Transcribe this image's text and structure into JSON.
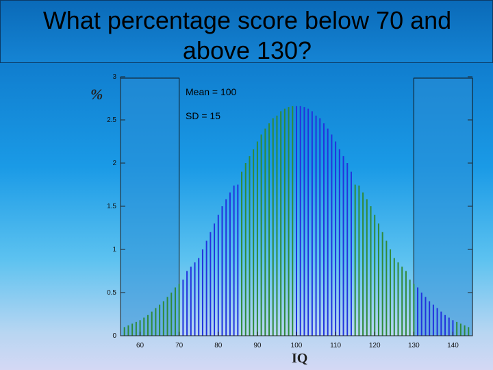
{
  "slide": {
    "title": "What percentage score below 70 and above 130?"
  },
  "chart_data": {
    "type": "bar",
    "xlabel": "IQ",
    "ylabel": "%",
    "xlim": [
      55,
      145
    ],
    "ylim": [
      0,
      3
    ],
    "xticks": [
      "60",
      "70",
      "80",
      "90",
      "100",
      "110",
      "120",
      "130",
      "140"
    ],
    "yticks": [
      "0",
      "0.5",
      "1",
      "1.5",
      "2",
      "2.5",
      "3"
    ],
    "annotations": [
      "Mean = 100",
      "SD = 15"
    ],
    "grid": false,
    "highlight_regions": [
      [
        55,
        70
      ],
      [
        130,
        145
      ]
    ],
    "x": [
      56,
      57,
      58,
      59,
      60,
      61,
      62,
      63,
      64,
      65,
      66,
      67,
      68,
      69,
      70,
      71,
      72,
      73,
      74,
      75,
      76,
      77,
      78,
      79,
      80,
      81,
      82,
      83,
      84,
      85,
      86,
      87,
      88,
      89,
      90,
      91,
      92,
      93,
      94,
      95,
      96,
      97,
      98,
      99,
      100,
      101,
      102,
      103,
      104,
      105,
      106,
      107,
      108,
      109,
      110,
      111,
      112,
      113,
      114,
      115,
      116,
      117,
      118,
      119,
      120,
      121,
      122,
      123,
      124,
      125,
      126,
      127,
      128,
      129,
      130,
      131,
      132,
      133,
      134,
      135,
      136,
      137,
      138,
      139,
      140,
      141,
      142,
      143,
      144
    ],
    "values": [
      0.1,
      0.12,
      0.14,
      0.16,
      0.18,
      0.21,
      0.24,
      0.28,
      0.32,
      0.36,
      0.4,
      0.45,
      0.5,
      0.56,
      0.6,
      0.65,
      0.75,
      0.8,
      0.85,
      0.9,
      1.0,
      1.1,
      1.2,
      1.3,
      1.4,
      1.5,
      1.58,
      1.66,
      1.74,
      1.75,
      1.9,
      2.0,
      2.08,
      2.16,
      2.25,
      2.33,
      2.4,
      2.46,
      2.52,
      2.55,
      2.6,
      2.63,
      2.65,
      2.66,
      2.66,
      2.66,
      2.65,
      2.63,
      2.6,
      2.55,
      2.52,
      2.46,
      2.4,
      2.33,
      2.25,
      2.16,
      2.08,
      2.0,
      1.9,
      1.75,
      1.74,
      1.66,
      1.58,
      1.5,
      1.4,
      1.3,
      1.2,
      1.1,
      1.0,
      0.9,
      0.85,
      0.8,
      0.75,
      0.65,
      0.6,
      0.56,
      0.5,
      0.45,
      0.4,
      0.36,
      0.32,
      0.28,
      0.24,
      0.21,
      0.18,
      0.16,
      0.14,
      0.12,
      0.1
    ],
    "colors": {
      "green": "#2f8a3a",
      "blue": "#2233dd",
      "axis": "#222222",
      "highlight": "#2a8ed6"
    }
  }
}
